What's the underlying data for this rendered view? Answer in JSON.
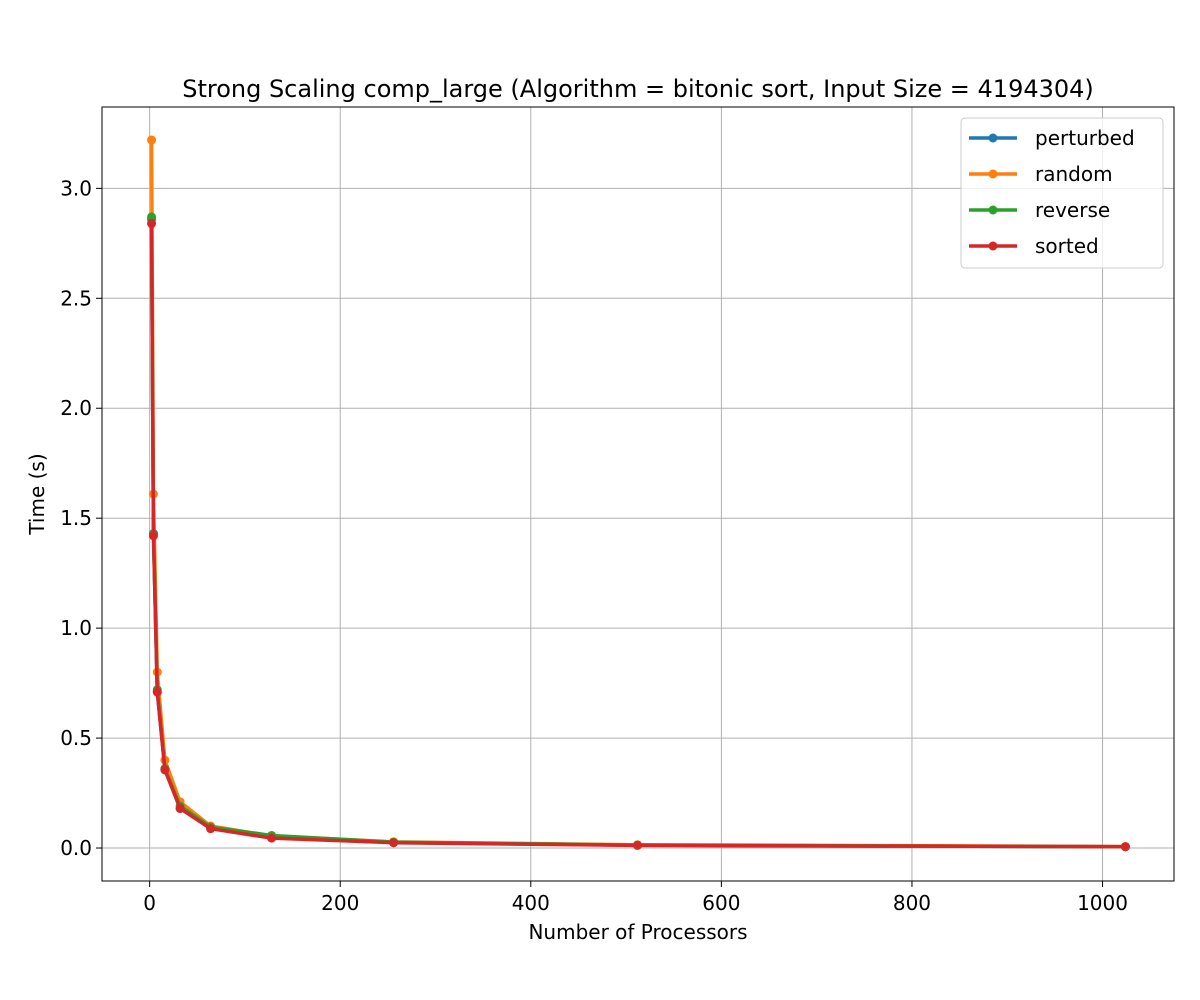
{
  "chart_data": {
    "type": "line",
    "title": "Strong Scaling comp_large (Algorithm = bitonic sort, Input Size = 4194304)",
    "xlabel": "Number of Processors",
    "ylabel": "Time (s)",
    "xlim": [
      -50,
      1075
    ],
    "ylim": [
      -0.15,
      3.37
    ],
    "xticks": [
      0,
      200,
      400,
      600,
      800,
      1000
    ],
    "xtick_labels": [
      "0",
      "200",
      "400",
      "600",
      "800",
      "1000"
    ],
    "yticks": [
      0.0,
      0.5,
      1.0,
      1.5,
      2.0,
      2.5,
      3.0
    ],
    "ytick_labels": [
      "0.0",
      "0.5",
      "1.0",
      "1.5",
      "2.0",
      "2.5",
      "3.0"
    ],
    "grid": true,
    "legend_position": "top-right",
    "x": [
      2,
      4,
      8,
      16,
      32,
      64,
      128,
      256,
      512,
      1024
    ],
    "series": [
      {
        "name": "perturbed",
        "color": "#1f77b4",
        "values": [
          2.86,
          1.43,
          0.71,
          0.36,
          0.18,
          0.09,
          0.05,
          0.025,
          0.013,
          0.006
        ]
      },
      {
        "name": "random",
        "color": "#ff7f0e",
        "values": [
          3.22,
          1.61,
          0.8,
          0.4,
          0.21,
          0.1,
          0.055,
          0.028,
          0.015,
          0.007
        ]
      },
      {
        "name": "reverse",
        "color": "#2ca02c",
        "values": [
          2.87,
          1.43,
          0.72,
          0.36,
          0.19,
          0.095,
          0.057,
          0.027,
          0.013,
          0.006
        ]
      },
      {
        "name": "sorted",
        "color": "#d62728",
        "values": [
          2.84,
          1.42,
          0.71,
          0.355,
          0.18,
          0.088,
          0.045,
          0.024,
          0.012,
          0.006
        ]
      }
    ]
  }
}
